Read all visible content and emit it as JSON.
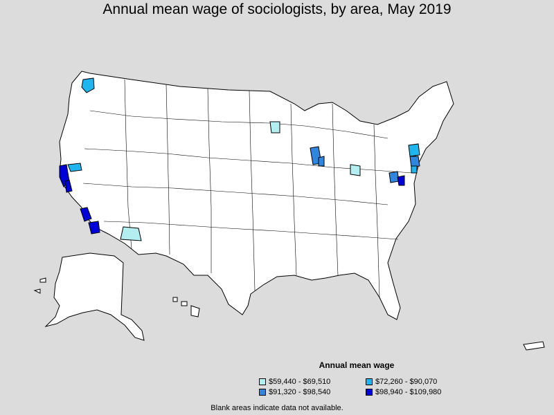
{
  "title": "Annual mean wage of sociologists, by area, May 2019",
  "legend": {
    "title": "Annual mean wage",
    "items": [
      {
        "label": "$59,440 - $69,510",
        "color": "#b3eef0"
      },
      {
        "label": "$72,260 - $90,070",
        "color": "#1fb5ee"
      },
      {
        "label": "$91,320 - $98,540",
        "color": "#2e86de"
      },
      {
        "label": "$98,940 - $109,980",
        "color": "#0000d8"
      }
    ]
  },
  "footnote": "Blank areas indicate data not available.",
  "colors": {
    "background": "#dcdcdc",
    "land": "#ffffff",
    "border": "#000000"
  }
}
